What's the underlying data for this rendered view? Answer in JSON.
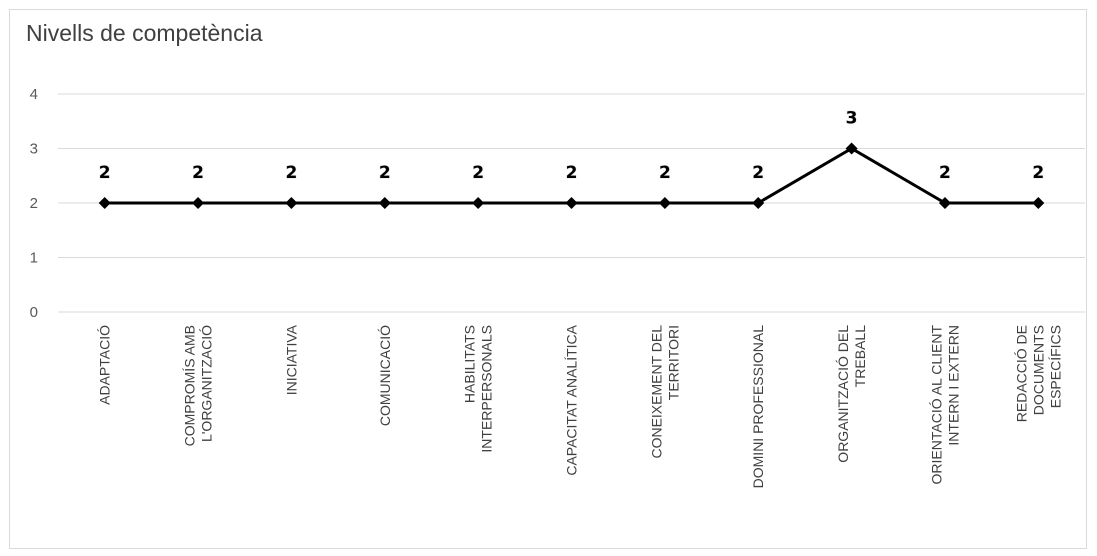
{
  "chart_data": {
    "type": "line",
    "title": "Nivells de competència",
    "xlabel": "",
    "ylabel": "",
    "ylim": [
      0,
      4
    ],
    "yticks": [
      0,
      1,
      2,
      3,
      4
    ],
    "grid": true,
    "categories": [
      [
        "ADAPTACIÓ"
      ],
      [
        "COMPROMÍS AMB",
        "L'ORGANITZACIÓ"
      ],
      [
        "INICIATIVA"
      ],
      [
        "COMUNICACIÓ"
      ],
      [
        "HABILITATS",
        "INTERPERSONALS"
      ],
      [
        "CAPACITAT ANALÍTICA"
      ],
      [
        "CONEIXEMENT DEL",
        "TERRITORI"
      ],
      [
        "DOMINI PROFESSIONAL"
      ],
      [
        "ORGANITZACIÓ DEL",
        "TREBALL"
      ],
      [
        "ORIENTACIÓ AL CLIENT",
        "INTERN I EXTERN"
      ],
      [
        "REDACCIÓ DE",
        "DOCUMENTS",
        "ESPECÍFICS"
      ]
    ],
    "series": [
      {
        "values": [
          2,
          2,
          2,
          2,
          2,
          2,
          2,
          2,
          3,
          2,
          2
        ]
      }
    ],
    "colors": {
      "line": "#000000",
      "grid": "#d9d9d9"
    }
  }
}
